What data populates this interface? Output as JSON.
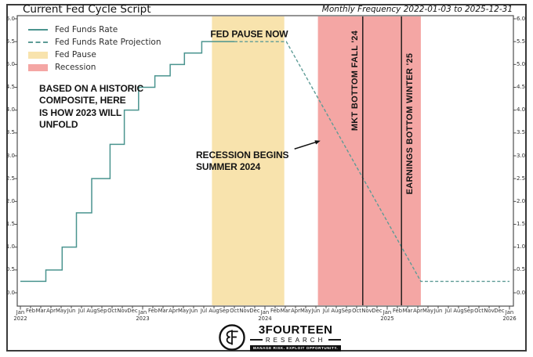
{
  "header": {
    "title": "Current Fed Cycle Script",
    "frequency_note": "Monthly Frequency 2022-01-03 to 2025-12-31"
  },
  "legend": {
    "items": [
      {
        "label": "Fed Funds Rate",
        "swatch": "line-solid"
      },
      {
        "label": "Fed Funds Rate Projection",
        "swatch": "line-dashed"
      },
      {
        "label": "Fed Pause",
        "swatch": "patch-yellow"
      },
      {
        "label": "Recession",
        "swatch": "patch-red"
      }
    ]
  },
  "colors": {
    "line": "#4a948f",
    "projection": "#5d9b96",
    "fed_pause_band": "#f8e3ad",
    "recession_band": "#f4a6a4",
    "event_line": "#151515",
    "spine": "#4d4d4d",
    "arrow": "#111111"
  },
  "chart_data": {
    "type": "line",
    "title": "Current Fed Cycle Script",
    "x_unit": "months since 2022-01 (0 = Jan 2022, 48 = Jan 2026)",
    "x_range": [
      0,
      48
    ],
    "ylim": [
      0,
      6
    ],
    "grid": false,
    "y_ticks": [
      "0.0",
      "0.5",
      "1.0",
      "1.5",
      "2.0",
      "2.5",
      "3.0",
      "3.5",
      "4.0",
      "4.5",
      "5.0",
      "5.5",
      "6.0"
    ],
    "y_ticks_both_sides": true,
    "x_axis": {
      "month_labels": [
        "Jan",
        "Feb",
        "Mar",
        "Apr",
        "May",
        "Jun",
        "Jul",
        "Aug",
        "Sep",
        "Oct",
        "Nov",
        "Dec"
      ],
      "year_labels": [
        "2022",
        "2023",
        "2024",
        "2025",
        "2026"
      ],
      "total_months": 49
    },
    "series": [
      {
        "name": "Fed Funds Rate",
        "style": "solid-step",
        "points": [
          [
            0,
            0.25
          ],
          [
            2.5,
            0.5
          ],
          [
            4.1,
            1.0
          ],
          [
            5.5,
            1.75
          ],
          [
            7.0,
            2.5
          ],
          [
            8.8,
            3.25
          ],
          [
            10.2,
            4.0
          ],
          [
            11.6,
            4.5
          ],
          [
            13.2,
            4.75
          ],
          [
            14.7,
            5.0
          ],
          [
            16.1,
            5.25
          ],
          [
            17.8,
            5.5
          ],
          [
            21,
            5.5
          ]
        ]
      },
      {
        "name": "Fed Funds Rate Projection",
        "style": "dashed-linear",
        "points": [
          [
            21,
            5.5
          ],
          [
            26.1,
            5.5
          ],
          [
            39.3,
            0.25
          ],
          [
            48,
            0.25
          ]
        ]
      }
    ],
    "bands": [
      {
        "name": "Fed Pause",
        "from_month": 18.8,
        "to_month": 25.9,
        "approx_dates": "Aug 2023 - Mar 2024",
        "color": "#f8e3ad"
      },
      {
        "name": "Recession",
        "from_month": 29.2,
        "to_month": 39.3,
        "approx_dates": "Jul 2024 - Apr 2025",
        "color": "#f4a6a4"
      }
    ],
    "event_lines": [
      {
        "label": "MKT BOTTOM FALL '24",
        "month": 33.6,
        "label_side": "left",
        "label_value_center": 4.65
      },
      {
        "label": "EARNINGS BOTTOM WINTER '25",
        "month": 37.4,
        "label_side": "right",
        "label_value_center": 3.7
      }
    ],
    "annotations": [
      {
        "id": "fed_pause_now",
        "lines": [
          "FED PAUSE NOW"
        ],
        "anchor": "center",
        "month": 22.46,
        "value": 5.66
      },
      {
        "id": "historic_composite",
        "lines": [
          "BASED ON A HISTORIC",
          "COMPOSITE, HERE",
          "IS HOW 2023 WILL",
          "UNFOLD"
        ],
        "anchor": "top-left",
        "month": 1.85,
        "value": 4.6
      },
      {
        "id": "recession_begins",
        "lines": [
          "RECESSION BEGINS",
          "SUMMER 2024"
        ],
        "anchor": "top-left",
        "month": 17.23,
        "value": 3.14,
        "arrow": {
          "from_month": 26.9,
          "from_value": 3.15,
          "to_month": 29.45,
          "to_value": 3.33
        }
      }
    ]
  },
  "footer_logo": {
    "monogram": "3F",
    "name": "3FOURTEEN",
    "division": "RESEARCH",
    "tagline": "MANAGE RISK. EXPLOIT OPPORTUNITY."
  }
}
